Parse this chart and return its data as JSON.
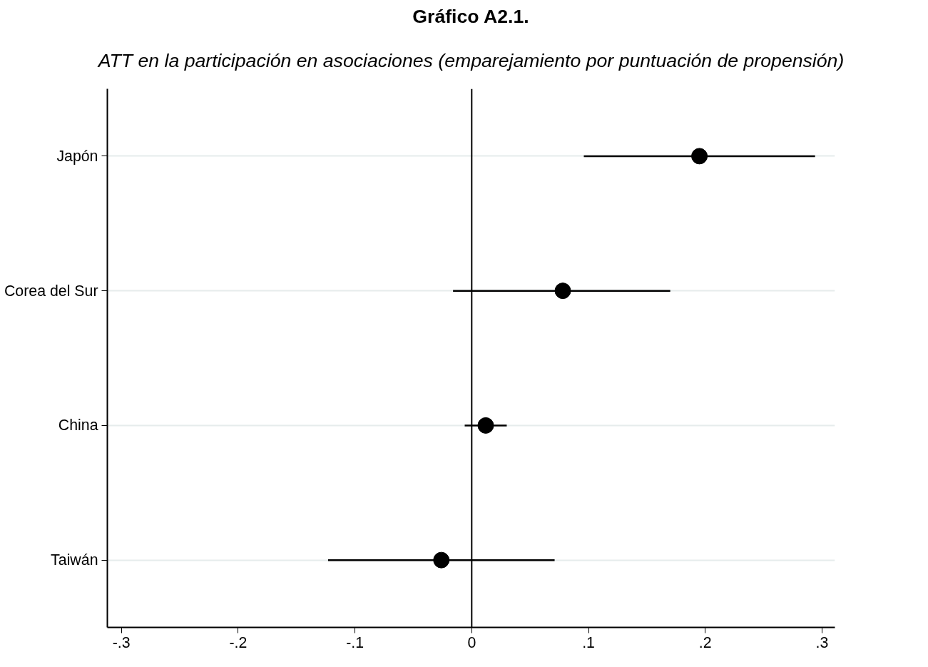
{
  "chart_data": {
    "type": "scatter",
    "title": "Gráfico A2.1.",
    "subtitle": "ATT en la participación en asociaciones (emparejamiento por puntuación de propensión)",
    "orientation": "horizontal",
    "categories": [
      "Japón",
      "Corea del Sur",
      "China",
      "Taiwán"
    ],
    "values": [
      0.195,
      0.078,
      0.012,
      -0.026
    ],
    "errors": [
      [
        0.096,
        0.294
      ],
      [
        -0.016,
        0.17
      ],
      [
        -0.006,
        0.03
      ],
      [
        -0.123,
        0.071
      ]
    ],
    "color": "#000000",
    "marker": "circle",
    "xlim": [
      -0.312,
      0.311
    ],
    "xticks": [
      {
        "value": -0.3,
        "label": "-.3"
      },
      {
        "value": -0.2,
        "label": "-.2"
      },
      {
        "value": -0.1,
        "label": "-.1"
      },
      0,
      {
        "value": 0.1,
        "label": ".1"
      },
      {
        "value": 0.2,
        "label": ".2"
      },
      {
        "value": 0.3,
        "label": ".3"
      }
    ],
    "ref_lines": [
      {
        "axis": "x",
        "value": 0,
        "label": null,
        "color": "#000000"
      }
    ],
    "grid": "y"
  }
}
